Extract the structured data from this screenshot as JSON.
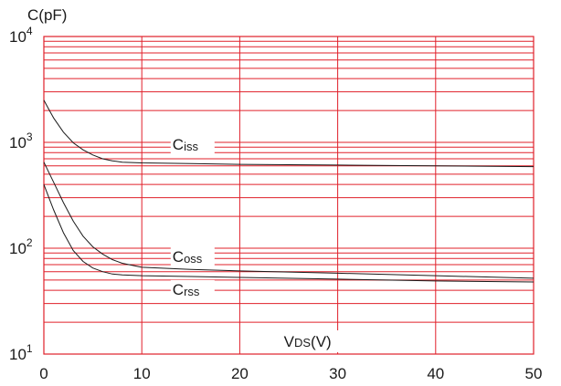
{
  "chart_data": {
    "type": "line",
    "ylabel": "C(pF)",
    "xlabel_main": "V",
    "xlabel_sub": "DS",
    "xlabel_unit": "(V)",
    "x_scale": "linear",
    "y_scale": "log",
    "xlim": [
      0,
      50
    ],
    "ylim": [
      10,
      10000
    ],
    "x_ticks": [
      {
        "value": 0,
        "label": "0"
      },
      {
        "value": 10,
        "label": "10"
      },
      {
        "value": 20,
        "label": "20"
      },
      {
        "value": 30,
        "label": "30"
      },
      {
        "value": 40,
        "label": "40"
      },
      {
        "value": 50,
        "label": "50"
      }
    ],
    "y_ticks": [
      {
        "value": 10,
        "base": "10",
        "exp": "1"
      },
      {
        "value": 100,
        "base": "10",
        "exp": "2"
      },
      {
        "value": 1000,
        "base": "10",
        "exp": "3"
      },
      {
        "value": 10000,
        "base": "10",
        "exp": "4"
      }
    ],
    "grid": true,
    "grid_color": "#e0202a",
    "line_color": "#1a1a1a",
    "series": [
      {
        "name_main": "C",
        "name_sub": "iss",
        "label_at": {
          "x": 15,
          "y": 960
        },
        "x": [
          0,
          0.5,
          1,
          2,
          3,
          4,
          5,
          6,
          7,
          8,
          10,
          15,
          20,
          30,
          40,
          50
        ],
        "y": [
          2500,
          2050,
          1700,
          1250,
          990,
          850,
          760,
          700,
          670,
          650,
          640,
          630,
          620,
          610,
          600,
          590
        ]
      },
      {
        "name_main": "C",
        "name_sub": "oss",
        "label_at": {
          "x": 15,
          "y": 84
        },
        "x": [
          0,
          1,
          2,
          3,
          4,
          5,
          6,
          7,
          8,
          10,
          15,
          20,
          30,
          40,
          50
        ],
        "y": [
          650,
          420,
          270,
          180,
          130,
          103,
          88,
          78,
          72,
          66,
          63,
          61,
          58,
          55,
          52
        ]
      },
      {
        "name_main": "C",
        "name_sub": "rss",
        "label_at": {
          "x": 15,
          "y": 41
        },
        "x": [
          0,
          1,
          2,
          3,
          4,
          5,
          6,
          7,
          8,
          10,
          15,
          20,
          30,
          40,
          50
        ],
        "y": [
          400,
          230,
          140,
          95,
          75,
          65,
          60,
          57,
          56,
          55,
          54,
          53,
          51,
          49,
          48
        ]
      }
    ]
  }
}
